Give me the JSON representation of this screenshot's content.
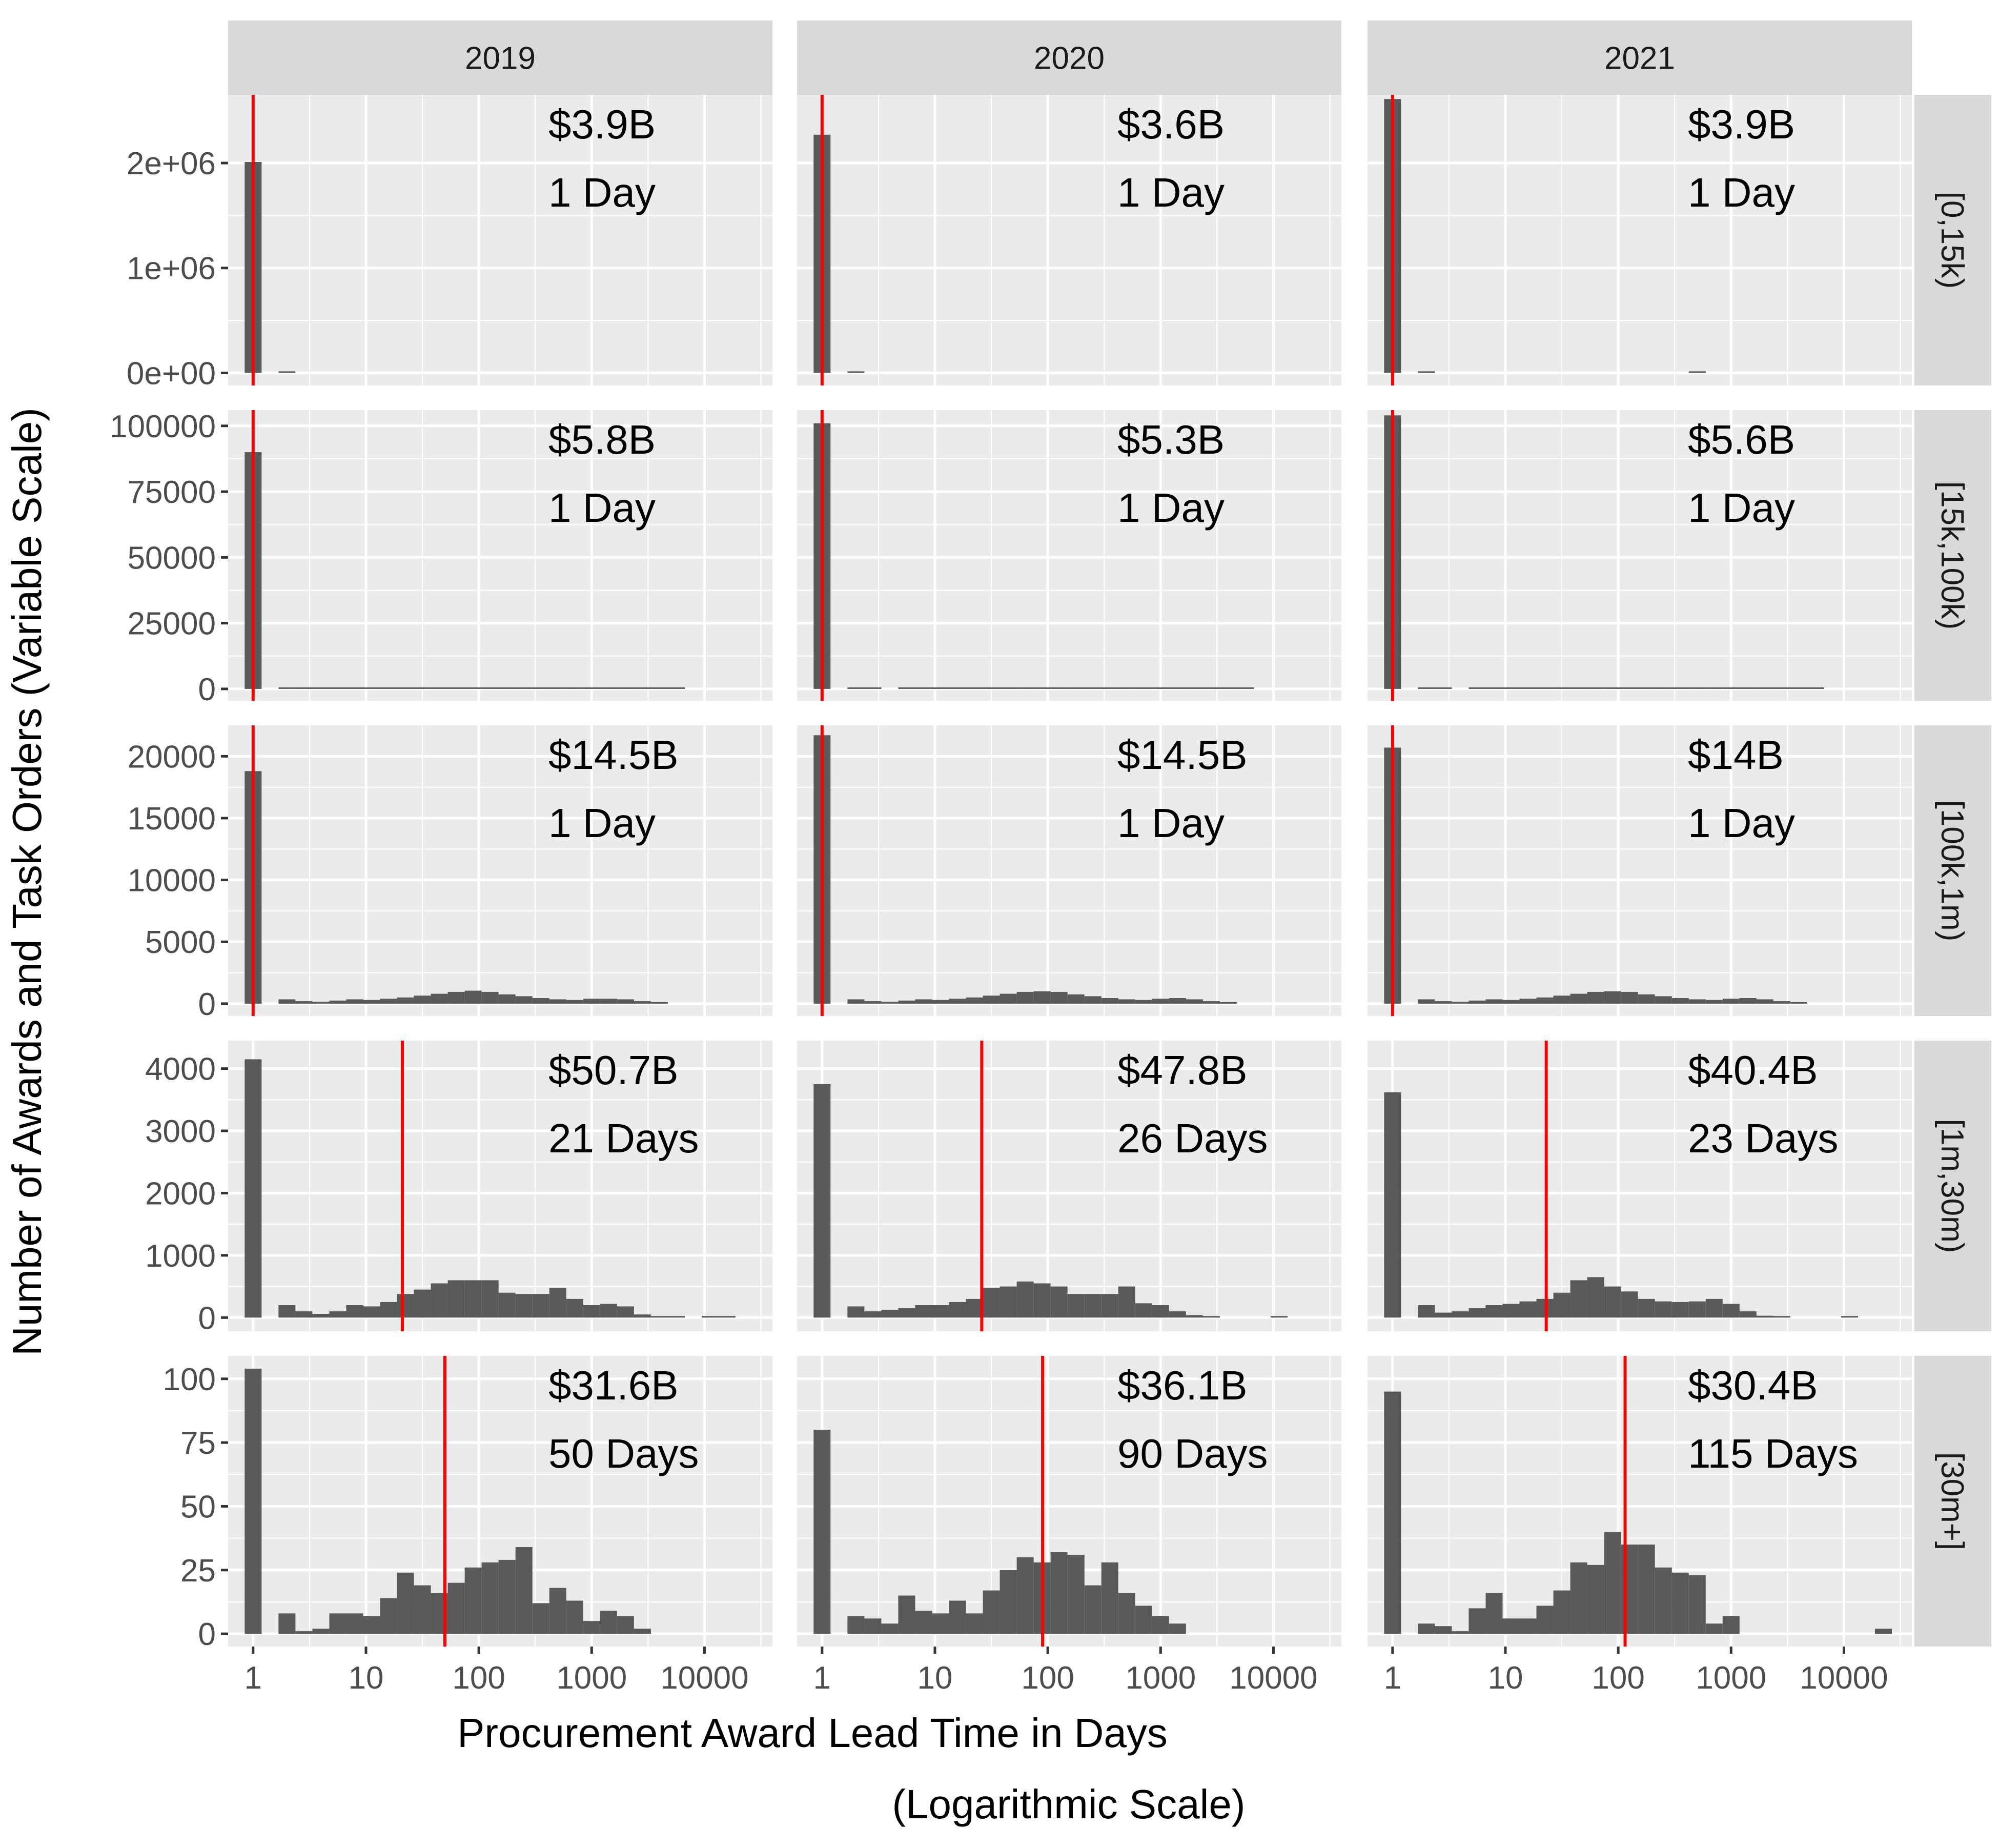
{
  "chart_data": {
    "type": "histogram_facet_grid",
    "title": "",
    "xlabel_line1": "Procurement Award Lead Time in Days",
    "xlabel_line2": "(Logarithmic Scale)",
    "ylabel": "Number of Awards and Task Orders (Variable Scale)",
    "x_scale": "log10",
    "x_range": [
      0.6,
      40000
    ],
    "x_ticks": [
      {
        "value": 1,
        "label": "1"
      },
      {
        "value": 10,
        "label": "10"
      },
      {
        "value": 100,
        "label": "100"
      },
      {
        "value": 1000,
        "label": "1000"
      },
      {
        "value": 10000,
        "label": "10000"
      }
    ],
    "bin_width_log10": 0.15,
    "first_bin_center_log10": 0,
    "bar_color": "#595959",
    "median_line_color": "#ff0000",
    "panel_background": "#ebebeb",
    "strip_background": "#d9d9d9",
    "grid": true,
    "columns": [
      "2019",
      "2020",
      "2021"
    ],
    "rows": [
      {
        "label": "[0,15k)",
        "y_range": [
          -120000,
          2650000
        ],
        "y_ticks": [
          {
            "value": 0,
            "label": "0e+00"
          },
          {
            "value": 1000000,
            "label": "1e+06"
          },
          {
            "value": 2000000,
            "label": "2e+06"
          }
        ],
        "panels": [
          {
            "year": "2019",
            "total_label": "$3.9B",
            "median_label": "1 Day",
            "median_days": 1,
            "counts": [
              2010000,
              0,
              500,
              0,
              0,
              0,
              0,
              0,
              0,
              0,
              0,
              0,
              0,
              0,
              0,
              0,
              0,
              0,
              0,
              0,
              0,
              0,
              0,
              0,
              0,
              0,
              0,
              0,
              0,
              0
            ]
          },
          {
            "year": "2020",
            "total_label": "$3.6B",
            "median_label": "1 Day",
            "median_days": 1,
            "counts": [
              2270000,
              0,
              500,
              0,
              0,
              0,
              0,
              0,
              0,
              0,
              0,
              0,
              0,
              0,
              0,
              0,
              0,
              0,
              0,
              0,
              0,
              0,
              0,
              0,
              0,
              0,
              0,
              0,
              0,
              0
            ]
          },
          {
            "year": "2021",
            "total_label": "$3.9B",
            "median_label": "1 Day",
            "median_days": 1,
            "counts": [
              2610000,
              0,
              500,
              0,
              0,
              0,
              0,
              0,
              0,
              0,
              0,
              0,
              0,
              0,
              0,
              0,
              0,
              0,
              12000,
              0,
              0,
              0,
              0,
              0,
              0,
              0,
              0,
              0,
              0,
              0
            ]
          }
        ]
      },
      {
        "label": "[15k,100k)",
        "y_range": [
          -4500,
          106000
        ],
        "y_ticks": [
          {
            "value": 0,
            "label": "0"
          },
          {
            "value": 25000,
            "label": "25000"
          },
          {
            "value": 50000,
            "label": "50000"
          },
          {
            "value": 75000,
            "label": "75000"
          },
          {
            "value": 100000,
            "label": "100000"
          }
        ],
        "panels": [
          {
            "year": "2019",
            "total_label": "$5.8B",
            "median_label": "1 Day",
            "median_days": 1,
            "counts": [
              90000,
              0,
              300,
              300,
              300,
              300,
              300,
              300,
              300,
              300,
              400,
              500,
              500,
              500,
              400,
              300,
              300,
              300,
              300,
              400,
              400,
              300,
              200,
              100,
              50,
              20,
              0,
              0,
              0,
              0
            ]
          },
          {
            "year": "2020",
            "total_label": "$5.3B",
            "median_label": "1 Day",
            "median_days": 1,
            "counts": [
              101000,
              0,
              300,
              300,
              0,
              300,
              300,
              300,
              300,
              300,
              400,
              500,
              500,
              400,
              400,
              300,
              300,
              300,
              300,
              400,
              300,
              300,
              200,
              100,
              50,
              20,
              0,
              0,
              0,
              0
            ]
          },
          {
            "year": "2021",
            "total_label": "$5.6B",
            "median_label": "1 Day",
            "median_days": 1,
            "counts": [
              104000,
              0,
              300,
              300,
              0,
              300,
              300,
              300,
              300,
              300,
              400,
              500,
              500,
              500,
              400,
              300,
              300,
              300,
              300,
              400,
              400,
              300,
              200,
              100,
              50,
              20,
              0,
              0,
              0,
              0
            ]
          }
        ]
      },
      {
        "label": "[100k,1m)",
        "y_range": [
          -1000,
          22500
        ],
        "y_ticks": [
          {
            "value": 0,
            "label": "0"
          },
          {
            "value": 5000,
            "label": "5000"
          },
          {
            "value": 10000,
            "label": "10000"
          },
          {
            "value": 15000,
            "label": "15000"
          },
          {
            "value": 20000,
            "label": "20000"
          }
        ],
        "panels": [
          {
            "year": "2019",
            "total_label": "$14.5B",
            "median_label": "1 Day",
            "median_days": 1,
            "counts": [
              18800,
              0,
              350,
              200,
              150,
              250,
              350,
              300,
              400,
              500,
              650,
              800,
              950,
              1050,
              950,
              750,
              600,
              450,
              350,
              300,
              400,
              400,
              350,
              200,
              100,
              0,
              0,
              0,
              0,
              0
            ]
          },
          {
            "year": "2020",
            "total_label": "$14.5B",
            "median_label": "1 Day",
            "median_days": 1,
            "counts": [
              21700,
              0,
              350,
              200,
              150,
              250,
              350,
              300,
              400,
              500,
              650,
              800,
              950,
              1000,
              950,
              750,
              600,
              450,
              350,
              300,
              400,
              450,
              350,
              200,
              100,
              0,
              0,
              0,
              0,
              0
            ]
          },
          {
            "year": "2021",
            "total_label": "$14B",
            "median_label": "1 Day",
            "median_days": 1,
            "counts": [
              20700,
              0,
              350,
              200,
              150,
              250,
              350,
              300,
              400,
              500,
              650,
              800,
              950,
              1000,
              950,
              750,
              600,
              450,
              350,
              300,
              400,
              450,
              350,
              200,
              100,
              0,
              0,
              0,
              0,
              0
            ]
          }
        ]
      },
      {
        "label": "[1m,30m)",
        "y_range": [
          -220,
          4450
        ],
        "y_ticks": [
          {
            "value": 0,
            "label": "0"
          },
          {
            "value": 1000,
            "label": "1000"
          },
          {
            "value": 2000,
            "label": "2000"
          },
          {
            "value": 3000,
            "label": "3000"
          },
          {
            "value": 4000,
            "label": "4000"
          }
        ],
        "panels": [
          {
            "year": "2019",
            "total_label": "$50.7B",
            "median_label": "21 Days",
            "median_days": 21,
            "counts": [
              4150,
              0,
              200,
              100,
              60,
              100,
              200,
              180,
              250,
              380,
              450,
              550,
              600,
              600,
              600,
              400,
              380,
              380,
              480,
              300,
              200,
              220,
              180,
              50,
              20,
              10,
              0,
              10,
              10,
              0
            ]
          },
          {
            "year": "2020",
            "total_label": "$47.8B",
            "median_label": "26 Days",
            "median_days": 26,
            "counts": [
              3750,
              0,
              180,
              100,
              120,
              150,
              200,
              200,
              250,
              300,
              480,
              500,
              580,
              550,
              500,
              380,
              380,
              380,
              500,
              230,
              200,
              100,
              40,
              10,
              0,
              0,
              0,
              20,
              0,
              0
            ]
          },
          {
            "year": "2021",
            "total_label": "$40.4B",
            "median_label": "23 Days",
            "median_days": 23,
            "counts": [
              3620,
              0,
              200,
              80,
              100,
              150,
              200,
              220,
              260,
              300,
              400,
              600,
              650,
              500,
              420,
              300,
              260,
              250,
              260,
              300,
              220,
              100,
              30,
              10,
              0,
              0,
              0,
              10,
              0,
              0
            ]
          }
        ]
      },
      {
        "label": "[30m+]",
        "y_range": [
          -5,
          109
        ],
        "y_ticks": [
          {
            "value": 0,
            "label": "0"
          },
          {
            "value": 25,
            "label": "25"
          },
          {
            "value": 50,
            "label": "50"
          },
          {
            "value": 75,
            "label": "75"
          },
          {
            "value": 100,
            "label": "100"
          }
        ],
        "panels": [
          {
            "year": "2019",
            "total_label": "$31.6B",
            "median_label": "50 Days",
            "median_days": 50,
            "counts": [
              104,
              0,
              8,
              1,
              2,
              8,
              8,
              7,
              14,
              24,
              19,
              16,
              20,
              26,
              28,
              29,
              34,
              12,
              18,
              13,
              5,
              9,
              7,
              2,
              0,
              0,
              0,
              0,
              0,
              0
            ]
          },
          {
            "year": "2020",
            "total_label": "$36.1B",
            "median_label": "90 Days",
            "median_days": 90,
            "counts": [
              80,
              0,
              7,
              6,
              4,
              15,
              9,
              8,
              13,
              8,
              17,
              25,
              30,
              28,
              32,
              31,
              19,
              28,
              16,
              11,
              7,
              4,
              0,
              0,
              0,
              0,
              0,
              0,
              0,
              0
            ]
          },
          {
            "year": "2021",
            "total_label": "$30.4B",
            "median_label": "115 Days",
            "median_days": 115,
            "counts": [
              95,
              0,
              4,
              3,
              1,
              10,
              16,
              6,
              6,
              11,
              17,
              28,
              27,
              40,
              35,
              35,
              26,
              24,
              23,
              4,
              7,
              0,
              0,
              0,
              0,
              0,
              0,
              0,
              0,
              2
            ]
          }
        ]
      }
    ]
  }
}
